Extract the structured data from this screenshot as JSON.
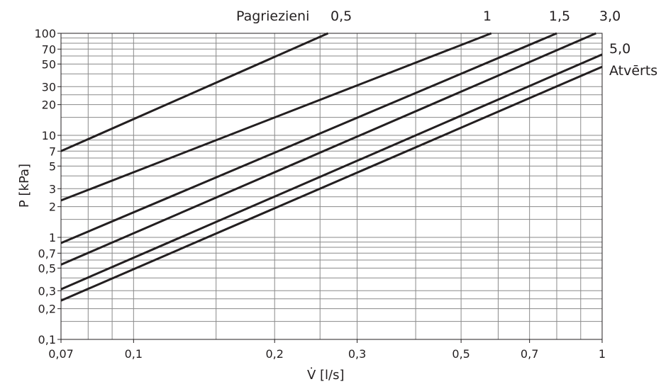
{
  "chart_data": {
    "type": "line",
    "title": "",
    "xlabel": "V̇ [l/s]",
    "ylabel": "P [kPa]",
    "x_scale": "log",
    "y_scale": "log",
    "xlim": [
      0.07,
      1
    ],
    "ylim": [
      0.1,
      100
    ],
    "grid": true,
    "x_ticks": [
      {
        "value": 0.07,
        "label": "0,07"
      },
      {
        "value": 0.1,
        "label": "0,1"
      },
      {
        "value": 0.2,
        "label": "0,2"
      },
      {
        "value": 0.3,
        "label": "0,3"
      },
      {
        "value": 0.5,
        "label": "0,5"
      },
      {
        "value": 0.7,
        "label": "0,7"
      },
      {
        "value": 1,
        "label": "1"
      }
    ],
    "y_ticks": [
      {
        "value": 0.1,
        "label": "0,1"
      },
      {
        "value": 0.2,
        "label": "0,2"
      },
      {
        "value": 0.3,
        "label": "0,3"
      },
      {
        "value": 0.5,
        "label": "0,5"
      },
      {
        "value": 0.7,
        "label": "0,7"
      },
      {
        "value": 1,
        "label": "1"
      },
      {
        "value": 2,
        "label": "2"
      },
      {
        "value": 3,
        "label": "3"
      },
      {
        "value": 5,
        "label": "5"
      },
      {
        "value": 7,
        "label": "7"
      },
      {
        "value": 10,
        "label": "10"
      },
      {
        "value": 20,
        "label": "20"
      },
      {
        "value": 30,
        "label": "30"
      },
      {
        "value": 50,
        "label": "50"
      },
      {
        "value": 70,
        "label": "70"
      },
      {
        "value": 100,
        "label": "100"
      }
    ],
    "x_minor_grid": [
      0.08,
      0.09,
      0.15,
      0.25,
      0.4,
      0.6,
      0.8,
      0.9
    ],
    "y_minor_grid": [
      0.15,
      0.25,
      0.4,
      0.6,
      0.8,
      0.9,
      1.5,
      2.5,
      4,
      6,
      8,
      9,
      15,
      25,
      40,
      60,
      80,
      90
    ],
    "series_group_label": "Pagriezieni",
    "series": [
      {
        "name": "0,5",
        "points": [
          [
            0.07,
            7.0
          ],
          [
            0.26,
            100
          ]
        ]
      },
      {
        "name": "1",
        "points": [
          [
            0.07,
            2.3
          ],
          [
            0.58,
            100
          ]
        ]
      },
      {
        "name": "1,5",
        "points": [
          [
            0.07,
            0.88
          ],
          [
            0.8,
            100
          ]
        ]
      },
      {
        "name": "3,0",
        "points": [
          [
            0.07,
            0.54
          ],
          [
            0.97,
            100
          ]
        ]
      },
      {
        "name": "5,0",
        "points": [
          [
            0.07,
            0.31
          ],
          [
            1,
            62
          ]
        ]
      },
      {
        "name": "Atvērts",
        "points": [
          [
            0.07,
            0.24
          ],
          [
            1,
            47
          ]
        ]
      }
    ]
  }
}
